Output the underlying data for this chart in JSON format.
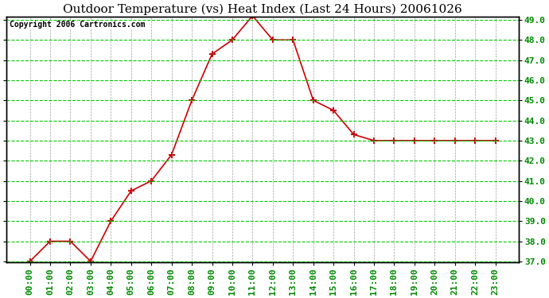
{
  "title": "Outdoor Temperature (vs) Heat Index (Last 24 Hours) 20061026",
  "copyright_text": "Copyright 2006 Cartronics.com",
  "hours": [
    "00:00",
    "01:00",
    "02:00",
    "03:00",
    "04:00",
    "05:00",
    "06:00",
    "07:00",
    "08:00",
    "09:00",
    "10:00",
    "11:00",
    "12:00",
    "13:00",
    "14:00",
    "15:00",
    "16:00",
    "17:00",
    "18:00",
    "19:00",
    "20:00",
    "21:00",
    "22:00",
    "23:00"
  ],
  "values": [
    37.0,
    38.0,
    38.0,
    37.0,
    39.0,
    40.5,
    41.0,
    42.3,
    45.0,
    47.3,
    48.0,
    49.2,
    48.0,
    48.0,
    45.0,
    44.5,
    43.3,
    43.0,
    43.0,
    43.0,
    43.0,
    43.0,
    43.0,
    43.0
  ],
  "ylim": [
    37.0,
    49.0
  ],
  "yticks": [
    37.0,
    38.0,
    39.0,
    40.0,
    41.0,
    42.0,
    43.0,
    44.0,
    45.0,
    46.0,
    47.0,
    48.0,
    49.0
  ],
  "line_color": "#cc0000",
  "marker": "+",
  "bg_color": "#ffffff",
  "plot_bg_color": "#ffffff",
  "grid_color": "#00cc00",
  "vgrid_color": "#888888",
  "title_color": "#000000",
  "title_fontsize": 11,
  "copyright_fontsize": 7,
  "tick_label_color": "#008800",
  "tick_label_fontsize": 8
}
